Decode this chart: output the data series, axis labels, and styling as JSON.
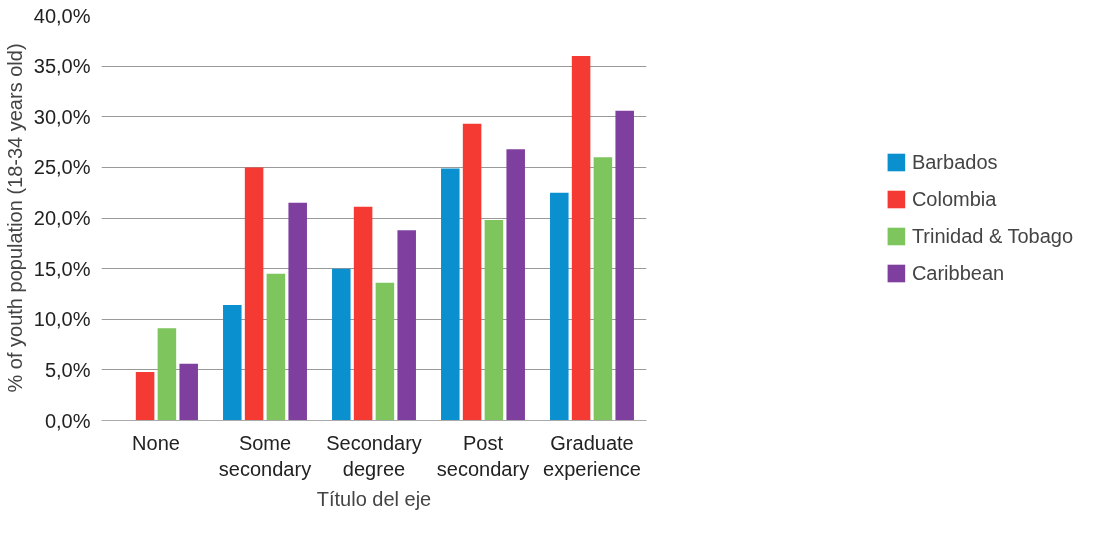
{
  "chart_data": {
    "type": "bar",
    "xlabel": "Título del eje",
    "ylabel": "% of youth population (18-34 years old)",
    "categories": [
      "None",
      "Some secondary",
      "Secondary degree",
      "Post secondary",
      "Graduate experience"
    ],
    "series": [
      {
        "name": "Barbados",
        "color": "#0a8fcf",
        "values": [
          0,
          11.4,
          15.0,
          24.9,
          22.5
        ]
      },
      {
        "name": "Colombia",
        "color": "#f43a32",
        "values": [
          4.8,
          25.0,
          21.1,
          29.3,
          36.0
        ]
      },
      {
        "name": "Trinidad & Tobago",
        "color": "#7dc55c",
        "values": [
          9.1,
          14.5,
          13.6,
          19.8,
          26.0
        ]
      },
      {
        "name": "Caribbean",
        "color": "#7f3f9f",
        "values": [
          5.6,
          21.5,
          18.8,
          26.8,
          30.6
        ]
      }
    ],
    "ylim": [
      0,
      40
    ],
    "yticks": [
      {
        "value": 0,
        "label": "0,0%"
      },
      {
        "value": 5,
        "label": "5,0%"
      },
      {
        "value": 10,
        "label": "10,0%"
      },
      {
        "value": 15,
        "label": "15,0%"
      },
      {
        "value": 20,
        "label": "20,0%"
      },
      {
        "value": 25,
        "label": "25,0%"
      },
      {
        "value": 30,
        "label": "30,0%"
      },
      {
        "value": 35,
        "label": "35,0%"
      },
      {
        "value": 40,
        "label": "40,0%"
      }
    ],
    "grid": "y",
    "legend": "right"
  }
}
